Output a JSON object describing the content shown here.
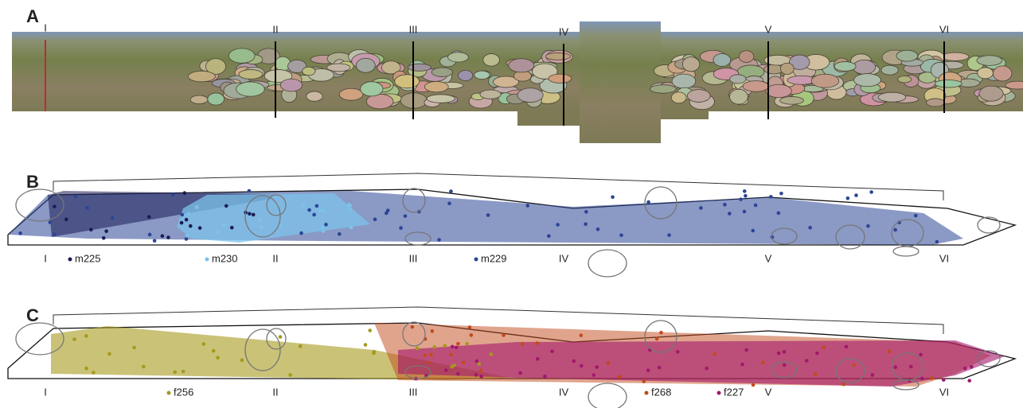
{
  "panels": [
    {
      "label": "A",
      "sections": [
        "I",
        "II",
        "III",
        "IV",
        "V",
        "VI"
      ]
    },
    {
      "label": "B",
      "sections": [
        "I",
        "II",
        "III",
        "IV",
        "V",
        "VI"
      ],
      "legend": [
        {
          "name": "m225",
          "color": "#1c1c54"
        },
        {
          "name": "m230",
          "color": "#7cc3ea"
        },
        {
          "name": "m229",
          "color": "#2b4596"
        }
      ]
    },
    {
      "label": "C",
      "sections": [
        "I",
        "II",
        "III",
        "IV",
        "V",
        "VI"
      ],
      "legend": [
        {
          "name": "f256",
          "color": "#a6991c"
        },
        {
          "name": "f268",
          "color": "#c24a1c"
        },
        {
          "name": "f227",
          "color": "#a1186c"
        }
      ]
    }
  ]
}
